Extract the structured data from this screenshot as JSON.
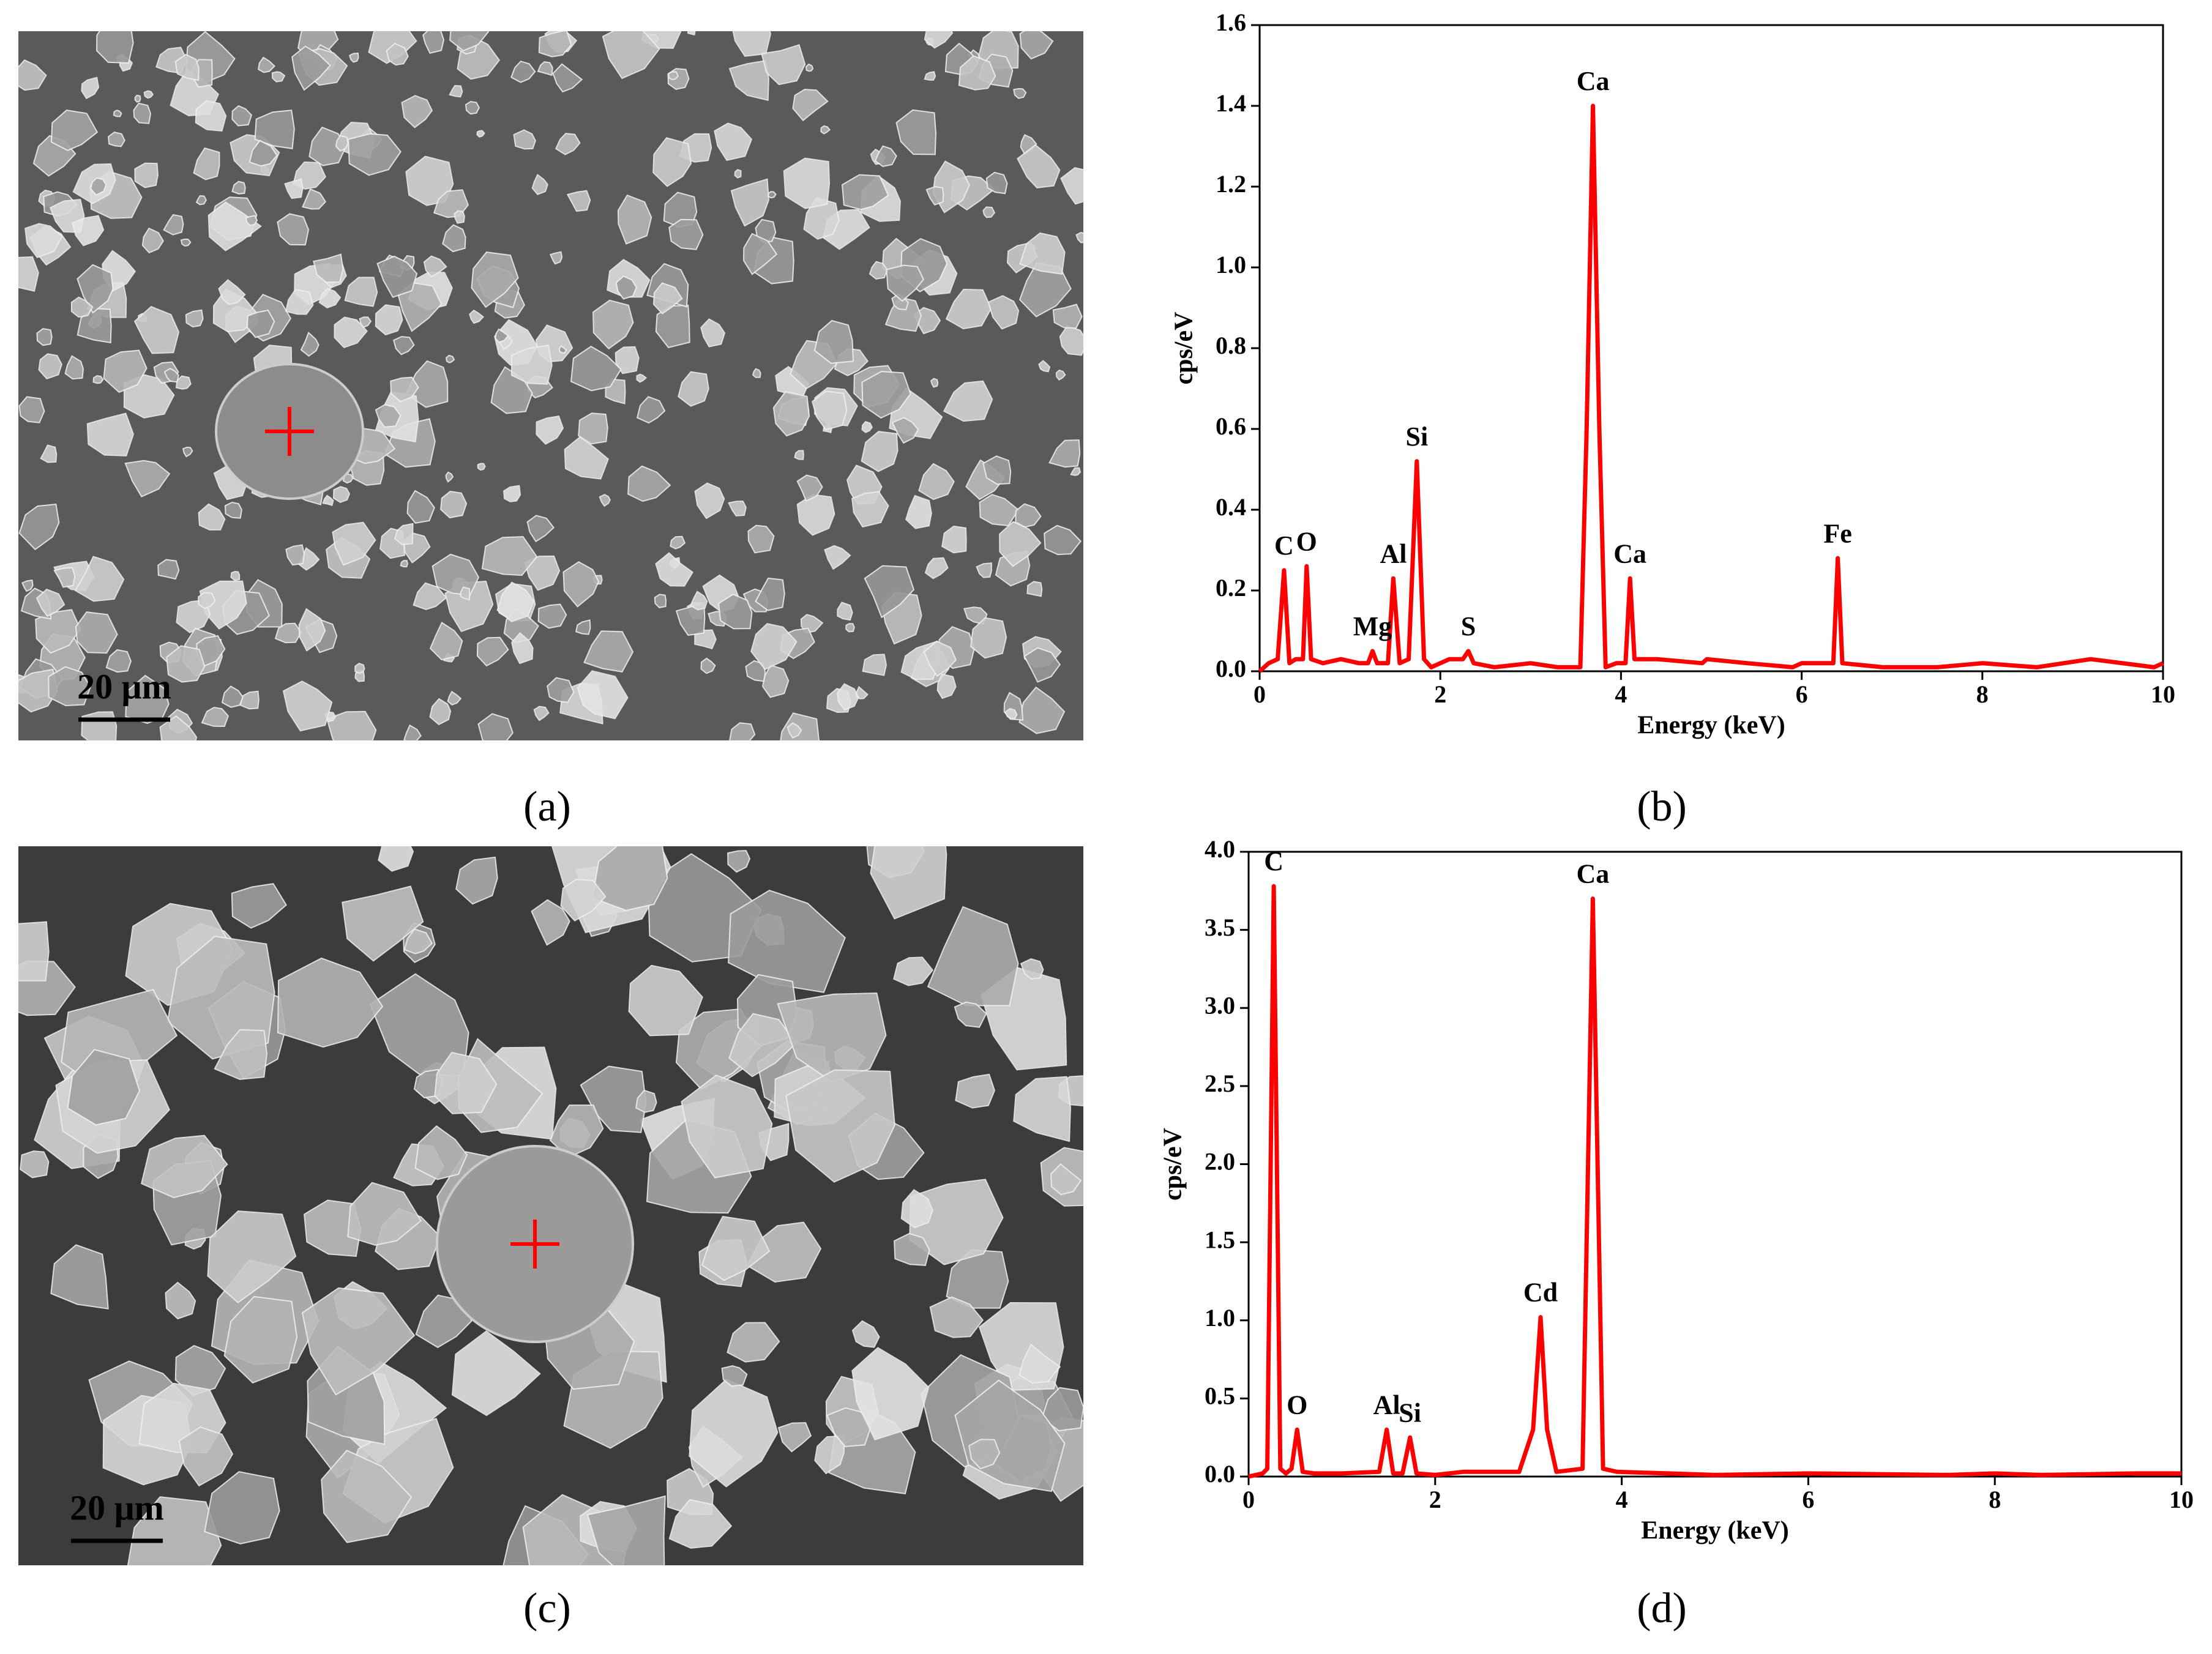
{
  "panels": [
    {
      "label": "(a)",
      "scale_bar": "20 μm"
    },
    {
      "label": "(b)"
    },
    {
      "label": "(c)",
      "scale_bar": "20 μm"
    },
    {
      "label": "(d)"
    }
  ],
  "chart_data": [
    {
      "type": "line",
      "x_label": "Energy (keV)",
      "y_label": "cps/eV",
      "x": [
        0,
        0.1,
        0.2,
        0.27,
        0.33,
        0.4,
        0.48,
        0.52,
        0.57,
        0.7,
        0.9,
        1.1,
        1.2,
        1.25,
        1.3,
        1.42,
        1.48,
        1.55,
        1.65,
        1.74,
        1.82,
        1.9,
        2.1,
        2.25,
        2.31,
        2.37,
        2.6,
        3.0,
        3.3,
        3.55,
        3.62,
        3.69,
        3.76,
        3.83,
        3.95,
        4.05,
        4.1,
        4.15,
        4.4,
        4.9,
        4.95,
        5.4,
        5.9,
        6.0,
        6.35,
        6.4,
        6.45,
        6.9,
        7.5,
        8.0,
        8.6,
        9.2,
        9.9,
        10
      ],
      "series": [
        {
          "color": "#ff0000",
          "values": [
            0,
            0.02,
            0.03,
            0.25,
            0.02,
            0.03,
            0.03,
            0.26,
            0.03,
            0.02,
            0.03,
            0.02,
            0.02,
            0.05,
            0.02,
            0.02,
            0.23,
            0.02,
            0.03,
            0.52,
            0.03,
            0.01,
            0.03,
            0.03,
            0.05,
            0.02,
            0.01,
            0.02,
            0.01,
            0.01,
            0.6,
            1.4,
            0.6,
            0.01,
            0.02,
            0.02,
            0.23,
            0.03,
            0.03,
            0.02,
            0.03,
            0.02,
            0.01,
            0.02,
            0.02,
            0.28,
            0.02,
            0.01,
            0.01,
            0.02,
            0.01,
            0.03,
            0.01,
            0.02
          ]
        }
      ],
      "annotations": [
        "C",
        "O",
        "Mg",
        "Al",
        "Si",
        "S",
        "Ca",
        "Ca",
        "Fe"
      ],
      "xlim": [
        0,
        10
      ],
      "ylim": [
        0,
        1.6
      ],
      "xticks": [
        0,
        2,
        4,
        6,
        8,
        10
      ],
      "yticks": [
        {
          "value": 0,
          "label": "0.0"
        },
        {
          "value": 0.2,
          "label": "0.2"
        },
        {
          "value": 0.4,
          "label": "0.4"
        },
        {
          "value": 0.6,
          "label": "0.6"
        },
        {
          "value": 0.8,
          "label": "0.8"
        },
        {
          "value": 1,
          "label": "1.0"
        },
        {
          "value": 1.2,
          "label": "1.2"
        },
        {
          "value": 1.4,
          "label": "1.4"
        },
        {
          "value": 1.6,
          "label": "1.6"
        }
      ]
    },
    {
      "type": "line",
      "x_label": "Energy (keV)",
      "y_label": "cps/eV",
      "x": [
        0,
        0.15,
        0.2,
        0.27,
        0.34,
        0.4,
        0.46,
        0.52,
        0.58,
        0.7,
        1.0,
        1.4,
        1.48,
        1.55,
        1.65,
        1.73,
        1.8,
        2.0,
        2.3,
        2.9,
        3.05,
        3.13,
        3.2,
        3.3,
        3.58,
        3.69,
        3.8,
        3.95,
        4.5,
        5,
        6,
        7.5,
        8,
        8.5,
        9.5,
        10
      ],
      "series": [
        {
          "color": "#ff0000",
          "values": [
            0,
            0.02,
            0.05,
            3.78,
            0.05,
            0.02,
            0.05,
            0.3,
            0.03,
            0.02,
            0.02,
            0.03,
            0.3,
            0.02,
            0.02,
            0.25,
            0.02,
            0.01,
            0.03,
            0.03,
            0.3,
            1.02,
            0.3,
            0.03,
            0.05,
            3.7,
            0.05,
            0.03,
            0.02,
            0.01,
            0.02,
            0.01,
            0.02,
            0.01,
            0.02,
            0.02
          ]
        }
      ],
      "annotations": [
        "C",
        "O",
        "Al",
        "Si",
        "Cd",
        "Ca"
      ],
      "xlim": [
        0,
        10
      ],
      "ylim": [
        0,
        4
      ],
      "xticks": [
        0,
        2,
        4,
        6,
        8,
        10
      ],
      "yticks": [
        {
          "value": 0,
          "label": "0.0"
        },
        {
          "value": 0.5,
          "label": "0.5"
        },
        {
          "value": 1,
          "label": "1.0"
        },
        {
          "value": 1.5,
          "label": "1.5"
        },
        {
          "value": 2,
          "label": "2.0"
        },
        {
          "value": 2.5,
          "label": "2.5"
        },
        {
          "value": 3,
          "label": "3.0"
        },
        {
          "value": 3.5,
          "label": "3.5"
        },
        {
          "value": 4,
          "label": "4.0"
        }
      ]
    }
  ]
}
